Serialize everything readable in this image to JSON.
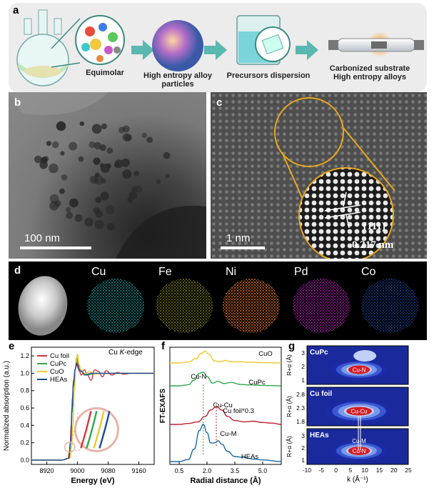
{
  "panel_a": {
    "label": "a",
    "step1": "Equimolar",
    "step2_line1": "High entropy alloy",
    "step2_line2": "particles",
    "step3": "Precursors dispersion",
    "step4_line1": "Carbonized substrate",
    "step4_line2": "High entropy alloys"
  },
  "panel_b": {
    "label": "b",
    "scale": "100 nm"
  },
  "panel_c": {
    "label": "c",
    "scale": "1 nm",
    "plane": "(111)",
    "spacing": "0.217 nm"
  },
  "panel_d": {
    "label": "d",
    "elements": [
      "Cu",
      "Fe",
      "Ni",
      "Pd",
      "Co"
    ]
  },
  "colors": {
    "Cu": "#18b4b4",
    "Fe": "#c8c81e",
    "Ni": "#e0701a",
    "Pd": "#d21ed2",
    "Co": "#1e64dc"
  },
  "chart_data": [
    {
      "type": "line",
      "label": "e",
      "title": "Cu K-edge",
      "title_plain": "Cu ",
      "title_italic": "K",
      "title_tail": "-edge",
      "xlabel": "Energy (eV)",
      "ylabel": "Normalized absorption (a.u.)",
      "xlim": [
        8880,
        9200
      ],
      "ylim": [
        -0.05,
        1.3
      ],
      "xticks": [
        8920,
        9000,
        9080,
        9160
      ],
      "yticks": [
        0.0,
        0.2,
        0.4,
        0.6,
        0.8,
        1.0,
        1.2
      ],
      "legend": [
        "Cu foil",
        "CuPc",
        "CuO",
        "HEAs"
      ],
      "series": [
        {
          "name": "Cu foil",
          "color": "#d8323c",
          "x": [
            8880,
            8960,
            8975,
            8980,
            8984,
            8987,
            8990,
            8993,
            8996,
            9000,
            9005,
            9010,
            9018,
            9026,
            9035,
            9045,
            9055,
            9065,
            9075,
            9090,
            9105,
            9120,
            9140,
            9160,
            9180,
            9200
          ],
          "y": [
            0.0,
            0.0,
            0.02,
            0.1,
            0.4,
            0.72,
            0.92,
            1.0,
            1.07,
            1.13,
            1.02,
            0.98,
            1.04,
            0.98,
            0.92,
            1.04,
            1.02,
            0.96,
            1.03,
            0.98,
            1.01,
            0.99,
            1.0,
            1.0,
            1.0,
            1.0
          ]
        },
        {
          "name": "CuPc",
          "color": "#2ea84c",
          "x": [
            8880,
            8960,
            8978,
            8983,
            8986,
            8990,
            8994,
            8998,
            9002,
            9008,
            9015,
            9025,
            9040,
            9060,
            9080,
            9100,
            9130,
            9160,
            9200
          ],
          "y": [
            0.0,
            0.0,
            0.02,
            0.2,
            0.55,
            0.85,
            1.02,
            1.18,
            1.12,
            1.04,
            1.0,
            0.98,
            0.99,
            1.0,
            1.0,
            1.0,
            1.0,
            1.0,
            1.0
          ]
        },
        {
          "name": "CuO",
          "color": "#f0c82c",
          "x": [
            8880,
            8960,
            8980,
            8985,
            8988,
            8992,
            8996,
            9000,
            9004,
            9010,
            9018,
            9030,
            9045,
            9060,
            9080,
            9110,
            9140,
            9170,
            9200
          ],
          "y": [
            0.0,
            0.0,
            0.02,
            0.15,
            0.4,
            0.8,
            1.1,
            1.22,
            1.1,
            1.02,
            0.98,
            1.02,
            0.99,
            1.0,
            1.0,
            1.0,
            1.0,
            1.0,
            1.0
          ]
        },
        {
          "name": "HEAs",
          "color": "#1a4a9c",
          "x": [
            8880,
            8960,
            8977,
            8982,
            8986,
            8990,
            8994,
            8998,
            9003,
            9010,
            9020,
            9035,
            9050,
            9070,
            9090,
            9120,
            9150,
            9180,
            9200
          ],
          "y": [
            0.0,
            0.0,
            0.02,
            0.2,
            0.6,
            0.9,
            1.05,
            1.12,
            1.05,
            1.02,
            0.98,
            1.0,
            1.0,
            1.0,
            1.0,
            1.0,
            1.0,
            1.0,
            1.0
          ]
        }
      ]
    },
    {
      "type": "line",
      "label": "f",
      "xlabel": "Radial distance (Å)",
      "ylabel": "FT-EXAFS",
      "xlim": [
        0,
        6
      ],
      "xticks": [
        0.5,
        2.0,
        3.5,
        5.0
      ],
      "series": [
        {
          "name": "CuO",
          "color": "#f0c82c",
          "x": [
            0,
            0.5,
            1.0,
            1.4,
            1.7,
            1.9,
            2.1,
            2.4,
            2.7,
            3.0,
            3.3,
            3.8,
            4.3,
            5.0,
            6.0
          ],
          "y": [
            0,
            0.0,
            0.05,
            0.2,
            0.45,
            0.55,
            0.4,
            0.1,
            0.05,
            0.12,
            0.05,
            0.06,
            0.03,
            0.02,
            0.0
          ]
        },
        {
          "name": "CuPc",
          "color": "#2ea84c",
          "x": [
            0,
            0.5,
            1.0,
            1.3,
            1.6,
            1.8,
            2.0,
            2.3,
            2.6,
            2.9,
            3.3,
            3.8,
            4.3,
            5.0,
            6.0
          ],
          "y": [
            0,
            0.0,
            0.05,
            0.25,
            0.55,
            0.6,
            0.4,
            0.12,
            0.2,
            0.1,
            0.15,
            0.06,
            0.04,
            0.02,
            0.0
          ]
        },
        {
          "name": "Cu foil*0.3",
          "color": "#c02030",
          "x": [
            0,
            0.5,
            1.0,
            1.5,
            1.9,
            2.2,
            2.5,
            2.8,
            3.1,
            3.5,
            4.0,
            4.5,
            5.0,
            5.5,
            6.0
          ],
          "y": [
            0,
            0.0,
            0.03,
            0.08,
            0.25,
            0.45,
            0.55,
            0.45,
            0.25,
            0.12,
            0.08,
            0.1,
            0.06,
            0.04,
            0.0
          ]
        },
        {
          "name": "HEAs",
          "color": "#1a6aa8",
          "x": [
            0,
            0.5,
            1.0,
            1.3,
            1.6,
            1.8,
            2.0,
            2.2,
            2.4,
            2.6,
            2.8,
            3.1,
            3.5,
            4.0,
            4.5,
            5.0,
            6.0
          ],
          "y": [
            0,
            0.0,
            0.05,
            0.3,
            0.75,
            0.9,
            0.7,
            0.45,
            0.45,
            0.5,
            0.42,
            0.25,
            0.12,
            0.1,
            0.06,
            0.04,
            0.0
          ]
        }
      ],
      "series_labels": [
        "CuO",
        "CuPc",
        "Cu foil*0.3",
        "HEAs"
      ],
      "annotations": [
        "Cu-N",
        "Cu-Cu",
        "Cu-M"
      ]
    },
    {
      "type": "heatmap",
      "label": "g",
      "xlabel": "k (Å⁻¹)",
      "xlabel_italic": "k",
      "xlabel_tail": " (Å⁻¹)",
      "ylabel": "R+α (Å)",
      "ylabel_italic": "R+α",
      "ylabel_tail": " (Å)",
      "xlim": [
        -10,
        25
      ],
      "xticks": [
        -10,
        -5,
        0,
        5,
        10,
        15,
        20,
        25
      ],
      "panels": [
        {
          "name": "CuPc",
          "yticks": [
            1,
            2,
            3
          ],
          "peak": "Cu-N"
        },
        {
          "name": "Cu foil",
          "yticks": [
            1.8,
            2.3,
            2.8
          ],
          "peak": "Cu-Cu"
        },
        {
          "name": "HEAs",
          "yticks": [
            1,
            2,
            3
          ],
          "peaks": [
            "Cu-M",
            "Cu-N"
          ]
        }
      ]
    }
  ]
}
